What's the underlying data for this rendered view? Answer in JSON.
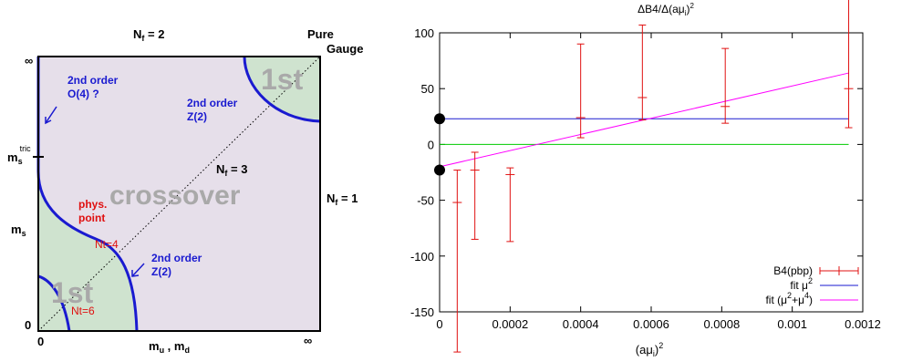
{
  "colors": {
    "panel_bg": "#e6dfea",
    "first_order_region": "#cfe3cf",
    "boundary": "#1a1ad0",
    "annotation_red": "#e01010",
    "crossover_text": "#a9a9a9",
    "data_red": "#e01010",
    "fit_mu2": "#1a1ad0",
    "fit_mu2_mu4": "#ff00ff",
    "zero_line": "#00cc00"
  },
  "phase_diagram": {
    "top_nf2": "N",
    "top_nf2_sub": "f",
    "top_nf2_rest": " = 2",
    "pure": "Pure",
    "gauge": "Gauge",
    "infinity_left": "∞",
    "infinity_bottom": "∞",
    "zero_corner": "0",
    "zero_axis": "0",
    "ms_tric_main": "m",
    "ms_tric_sub": "s",
    "ms_tric_sup": "tric",
    "ms_main": "m",
    "ms_sub": "s",
    "mu_md_a": "m",
    "mu_md_a_sub": "u",
    "mu_md_sep": " , m",
    "mu_md_b_sub": "d",
    "nf1_main": "N",
    "nf1_sub": "f",
    "nf1_rest": " = 1",
    "nf3_main": "N",
    "nf3_sub": "f",
    "nf3_rest": " = 3",
    "first_top": "1st",
    "first_bottom": "1st",
    "crossover": "crossover",
    "o4_line1": "2nd order",
    "o4_line2": "O(4) ?",
    "z2_top_line1": "2nd order",
    "z2_top_line2": "Z(2)",
    "z2_bottom_line1": "2nd order",
    "z2_bottom_line2": "Z(2)",
    "phys_line1": "phys.",
    "phys_line2": "point",
    "nt4": "Nt=4",
    "nt6": "Nt=6"
  },
  "chart_data": {
    "type": "scatter",
    "title": "ΔB4/Δ(aμ",
    "title_sub": "i",
    "title_end": ")",
    "title_sup": "2",
    "xlabel": "(aμ",
    "xlabel_sub": "i",
    "xlabel_end": ")",
    "xlabel_sup": "2",
    "ylabel": "",
    "xlim": [
      0,
      0.0012
    ],
    "ylim": [
      -150,
      100
    ],
    "x_ticks": [
      "0",
      "0.0002",
      "0.0004",
      "0.0006",
      "0.0008",
      "0.001",
      "0.0012"
    ],
    "x_tick_values": [
      0,
      0.0002,
      0.0004,
      0.0006,
      0.0008,
      0.001,
      0.0012
    ],
    "y_ticks": [
      "100",
      "50",
      "0",
      "-50",
      "-100",
      "-150"
    ],
    "y_tick_values": [
      100,
      50,
      0,
      -50,
      -100,
      -150
    ],
    "grid": false,
    "legend_position": "bottom-right",
    "series": [
      {
        "name": "B4(pbp)",
        "kind": "errorbar",
        "x": [
          5e-05,
          0.0001,
          0.0002,
          0.0004,
          0.000575,
          0.00081,
          0.00116
        ],
        "y": [
          -52,
          -23,
          -27,
          24,
          42,
          34,
          50
        ],
        "yerr_low": [
          134,
          62,
          60,
          18,
          20,
          15,
          35
        ],
        "yerr_high": [
          29,
          16,
          6,
          66,
          65,
          52,
          86
        ]
      },
      {
        "name": "fit μ",
        "name_sup": "2",
        "kind": "line",
        "x": [
          0,
          0.00116
        ],
        "y": [
          23,
          23
        ]
      },
      {
        "name": "fit (μ",
        "name_sup": "2",
        "name_mid": "+μ",
        "name_sup2": "4",
        "name_end": ")",
        "kind": "line",
        "x": [
          0,
          0.00116
        ],
        "y": [
          -20,
          64
        ]
      },
      {
        "kind": "line",
        "x": [
          0,
          0.00116
        ],
        "y": [
          0,
          0
        ]
      }
    ],
    "zero_markers_y": [
      23,
      -23
    ]
  }
}
